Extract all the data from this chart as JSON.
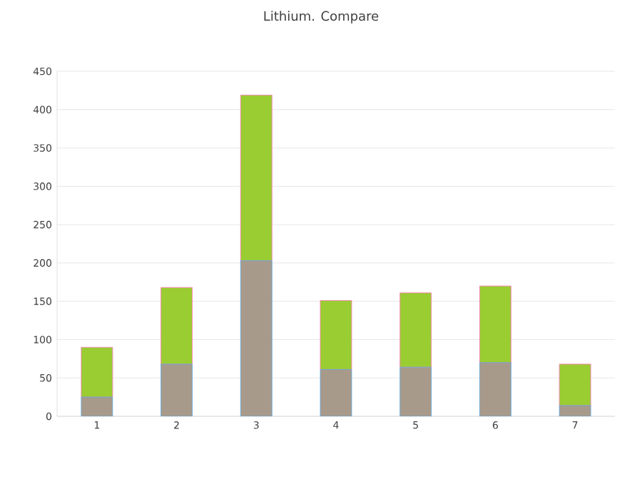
{
  "chart_data": {
    "type": "bar",
    "title": "Lithium. Compare",
    "stacked": true,
    "grid": "y",
    "categories": [
      "1",
      "2",
      "3",
      "4",
      "5",
      "6",
      "7"
    ],
    "series": [
      {
        "color": "#a89a8a",
        "values": [
          25,
          68,
          203,
          61,
          64,
          70,
          14
        ]
      },
      {
        "color": "#9acd32",
        "values": [
          65,
          100,
          216,
          90,
          97,
          100,
          54
        ]
      }
    ],
    "ylim": [
      0,
      450
    ],
    "yticks": [
      0,
      50,
      100,
      150,
      200,
      250,
      300,
      350,
      400,
      450
    ]
  }
}
